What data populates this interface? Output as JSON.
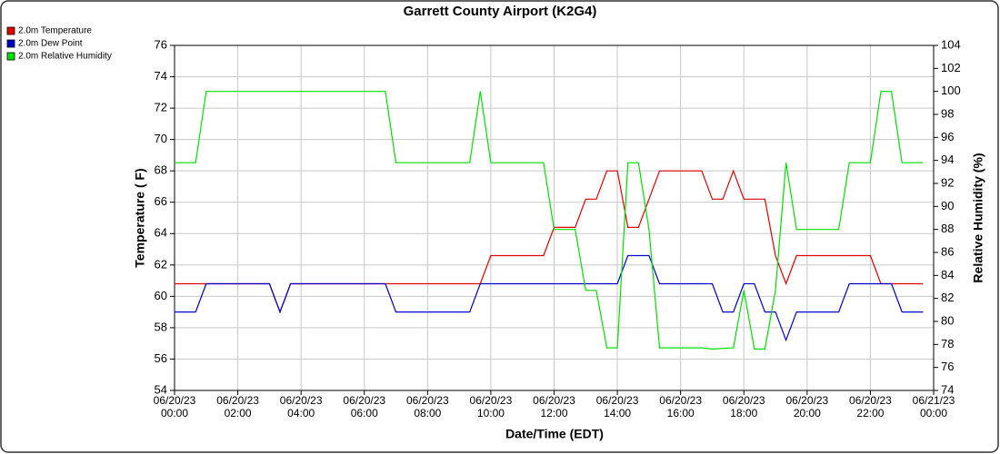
{
  "chart_data": {
    "type": "line",
    "title": "Garrett County Airport (K2G4)",
    "xlabel": "Date/Time (EDT)",
    "ylabel": "Temperature ( F)",
    "y2label": "Relative Humidity (%)",
    "xlim": [
      "2023-06-20 00:00",
      "2023-06-21 00:00"
    ],
    "xticks": [
      {
        "value": "2023-06-20 00:00",
        "label": "06/20/23\n00:00"
      },
      {
        "value": "2023-06-20 02:00",
        "label": "06/20/23\n02:00"
      },
      {
        "value": "2023-06-20 04:00",
        "label": "06/20/23\n04:00"
      },
      {
        "value": "2023-06-20 06:00",
        "label": "06/20/23\n06:00"
      },
      {
        "value": "2023-06-20 08:00",
        "label": "06/20/23\n08:00"
      },
      {
        "value": "2023-06-20 10:00",
        "label": "06/20/23\n10:00"
      },
      {
        "value": "2023-06-20 12:00",
        "label": "06/20/23\n12:00"
      },
      {
        "value": "2023-06-20 14:00",
        "label": "06/20/23\n14:00"
      },
      {
        "value": "2023-06-20 16:00",
        "label": "06/20/23\n16:00"
      },
      {
        "value": "2023-06-20 18:00",
        "label": "06/20/23\n18:00"
      },
      {
        "value": "2023-06-20 20:00",
        "label": "06/20/23\n20:00"
      },
      {
        "value": "2023-06-20 22:00",
        "label": "06/20/23\n22:00"
      },
      {
        "value": "2023-06-21 00:00",
        "label": "06/21/23\n00:00"
      }
    ],
    "ylim": [
      54,
      76
    ],
    "yticks": [
      54,
      56,
      58,
      60,
      62,
      64,
      66,
      68,
      70,
      72,
      74,
      76
    ],
    "y2lim": [
      74,
      104
    ],
    "y2ticks": [
      74,
      76,
      78,
      80,
      82,
      84,
      86,
      88,
      90,
      92,
      94,
      96,
      98,
      100,
      102,
      104
    ],
    "grid": true,
    "legend": "top-left",
    "series": [
      {
        "name": "2.0m Temperature",
        "color": "#e00000",
        "x": [
          "2023-06-20 00:00",
          "2023-06-20 03:00",
          "2023-06-20 03:20",
          "2023-06-20 03:40",
          "2023-06-20 09:40",
          "2023-06-20 10:00",
          "2023-06-20 11:40",
          "2023-06-20 12:00",
          "2023-06-20 12:40",
          "2023-06-20 13:00",
          "2023-06-20 13:20",
          "2023-06-20 13:40",
          "2023-06-20 14:00",
          "2023-06-20 14:20",
          "2023-06-20 14:40",
          "2023-06-20 15:20",
          "2023-06-20 16:40",
          "2023-06-20 17:00",
          "2023-06-20 17:20",
          "2023-06-20 17:40",
          "2023-06-20 18:00",
          "2023-06-20 18:40",
          "2023-06-20 19:00",
          "2023-06-20 19:20",
          "2023-06-20 19:40",
          "2023-06-20 22:00",
          "2023-06-20 22:20",
          "2023-06-20 23:40"
        ],
        "values": [
          60.8,
          60.8,
          59,
          60.8,
          60.8,
          62.6,
          62.6,
          64.4,
          64.4,
          66.2,
          66.2,
          68,
          68,
          64.4,
          64.4,
          68,
          68,
          66.2,
          66.2,
          68,
          66.2,
          66.2,
          62.6,
          60.8,
          62.6,
          62.6,
          60.8,
          60.8
        ]
      },
      {
        "name": "2.0m Dew Point",
        "color": "#0000d0",
        "x": [
          "2023-06-20 00:00",
          "2023-06-20 00:40",
          "2023-06-20 01:00",
          "2023-06-20 03:00",
          "2023-06-20 03:20",
          "2023-06-20 03:40",
          "2023-06-20 06:40",
          "2023-06-20 07:00",
          "2023-06-20 09:20",
          "2023-06-20 09:40",
          "2023-06-20 14:00",
          "2023-06-20 14:20",
          "2023-06-20 15:00",
          "2023-06-20 15:20",
          "2023-06-20 17:00",
          "2023-06-20 17:20",
          "2023-06-20 17:40",
          "2023-06-20 18:00",
          "2023-06-20 18:20",
          "2023-06-20 18:40",
          "2023-06-20 19:00",
          "2023-06-20 19:20",
          "2023-06-20 19:40",
          "2023-06-20 21:00",
          "2023-06-20 21:20",
          "2023-06-20 22:40",
          "2023-06-20 23:00",
          "2023-06-20 23:40"
        ],
        "values": [
          59,
          59,
          60.8,
          60.8,
          59,
          60.8,
          60.8,
          59,
          59,
          60.8,
          60.8,
          62.6,
          62.6,
          60.8,
          60.8,
          59,
          59,
          60.8,
          60.8,
          59,
          59,
          57.2,
          59,
          59,
          60.8,
          60.8,
          59,
          59
        ]
      },
      {
        "name": "2.0m Relative Humidity",
        "color": "#00e000",
        "axis": "y2",
        "x": [
          "2023-06-20 00:00",
          "2023-06-20 00:40",
          "2023-06-20 01:00",
          "2023-06-20 06:40",
          "2023-06-20 07:00",
          "2023-06-20 09:20",
          "2023-06-20 09:40",
          "2023-06-20 10:00",
          "2023-06-20 11:40",
          "2023-06-20 12:00",
          "2023-06-20 12:40",
          "2023-06-20 13:00",
          "2023-06-20 13:20",
          "2023-06-20 13:40",
          "2023-06-20 14:00",
          "2023-06-20 14:20",
          "2023-06-20 14:40",
          "2023-06-20 15:00",
          "2023-06-20 15:20",
          "2023-06-20 16:40",
          "2023-06-20 17:00",
          "2023-06-20 17:40",
          "2023-06-20 18:00",
          "2023-06-20 18:20",
          "2023-06-20 18:40",
          "2023-06-20 19:00",
          "2023-06-20 19:20",
          "2023-06-20 19:40",
          "2023-06-20 21:00",
          "2023-06-20 21:20",
          "2023-06-20 22:00",
          "2023-06-20 22:20",
          "2023-06-20 22:40",
          "2023-06-20 23:00",
          "2023-06-20 23:40"
        ],
        "values": [
          93.8,
          93.8,
          100,
          100,
          93.8,
          93.8,
          100,
          93.8,
          93.8,
          88,
          88,
          82.7,
          82.7,
          77.7,
          77.7,
          93.8,
          93.8,
          88,
          77.7,
          77.7,
          77.6,
          77.7,
          82.7,
          77.6,
          77.6,
          82.7,
          93.8,
          88,
          88,
          93.8,
          93.8,
          100,
          100,
          93.8,
          93.8
        ]
      }
    ]
  }
}
